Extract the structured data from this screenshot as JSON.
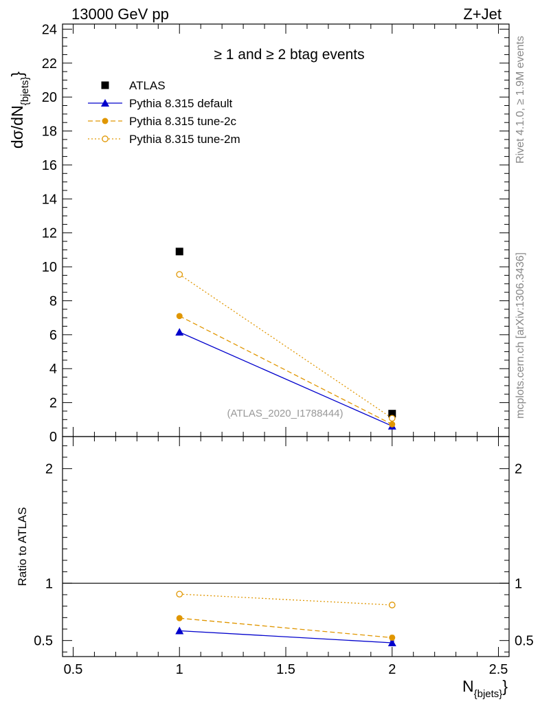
{
  "header": {
    "energy_label": "13000 GeV pp",
    "process_label": "Z+Jet"
  },
  "side_labels": {
    "rivet_info": "Rivet 4.1.0, ≥ 1.9M events",
    "mcplots_info": "mcplots.cern.ch [arXiv:1306.3436]"
  },
  "chart_data": [
    {
      "type": "scatter",
      "panel": "main",
      "title": "≥ 1  and ≥ 2 btag events",
      "ylabel": "dσ/dN",
      "ylabel_sub": "{bjets}",
      "ylabel_close": "}",
      "watermark": "(ATLAS_2020_I1788444)",
      "xlim": [
        0.45,
        2.55
      ],
      "ylim": [
        0,
        24.3
      ],
      "x_ticks": [
        0.5,
        1,
        1.5,
        2,
        2.5
      ],
      "y_ticks": [
        0,
        2,
        4,
        6,
        8,
        10,
        12,
        14,
        16,
        18,
        20,
        22,
        24
      ],
      "y_tick_labels": [
        "0",
        "2",
        "4",
        "6",
        "8",
        "10",
        "12",
        "14",
        "16",
        "18",
        "20",
        "22",
        "24"
      ],
      "legend_position": "top-left",
      "series": [
        {
          "name": "ATLAS",
          "x": [
            1,
            2
          ],
          "y": [
            10.9,
            1.35
          ],
          "color": "#000000",
          "marker": "square",
          "line": "none"
        },
        {
          "name": "Pythia 8.315 default",
          "x": [
            1,
            2
          ],
          "y": [
            6.15,
            0.62
          ],
          "color": "#0000cc",
          "marker": "triangle",
          "line": "solid"
        },
        {
          "name": "Pythia 8.315 tune-2c",
          "x": [
            1,
            2
          ],
          "y": [
            7.1,
            0.72
          ],
          "color": "#e09600",
          "marker": "circle",
          "line": "dashed"
        },
        {
          "name": "Pythia 8.315 tune-2m",
          "x": [
            1,
            2
          ],
          "y": [
            9.55,
            1.08
          ],
          "color": "#e09600",
          "marker": "open-circle",
          "line": "dotted"
        }
      ]
    },
    {
      "type": "line",
      "panel": "ratio",
      "ylabel": "Ratio to ATLAS",
      "xlabel": "N",
      "xlabel_sub": "{bjets}",
      "xlabel_close": "}",
      "xlim": [
        0.45,
        2.55
      ],
      "ylim": [
        0.36,
        2.28
      ],
      "x_ticks": [
        0.5,
        1,
        1.5,
        2,
        2.5
      ],
      "x_tick_labels": [
        "0.5",
        "1",
        "1.5",
        "2",
        "2.5"
      ],
      "y_ticks": [
        0.5,
        1,
        2
      ],
      "y_tick_labels": [
        "0.5",
        "1",
        "2"
      ],
      "reference_line": 1,
      "series": [
        {
          "name": "Pythia 8.315 default",
          "x": [
            1,
            2
          ],
          "y": [
            0.585,
            0.48
          ],
          "err": [
            0.004,
            0.015
          ],
          "color": "#0000cc",
          "marker": "triangle",
          "line": "solid"
        },
        {
          "name": "Pythia 8.315 tune-2c",
          "x": [
            1,
            2
          ],
          "y": [
            0.695,
            0.525
          ],
          "err": [
            0.004,
            0.02
          ],
          "color": "#e09600",
          "marker": "circle",
          "line": "dashed"
        },
        {
          "name": "Pythia 8.315 tune-2m",
          "x": [
            1,
            2
          ],
          "y": [
            0.905,
            0.81
          ],
          "err": [
            0.004,
            0.02
          ],
          "color": "#e09600",
          "marker": "open-circle",
          "line": "dotted"
        }
      ]
    }
  ]
}
